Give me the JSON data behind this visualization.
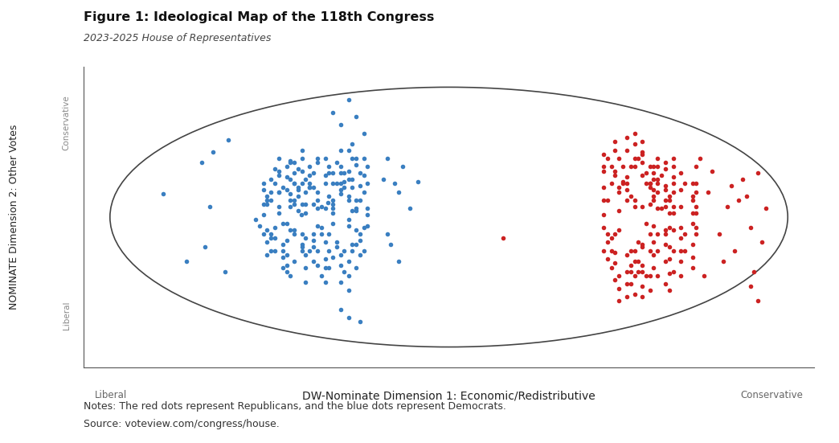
{
  "title": "Figure 1: Ideological Map of the 118th Congress",
  "subtitle": "2023-2025 House of Representatives",
  "xlabel_center": "DW-Nominate Dimension 1: Economic/Redistributive",
  "xlabel_left": "Liberal",
  "xlabel_right": "Conservative",
  "ylabel_top": "Conservative",
  "ylabel_bottom": "Liberal",
  "notes_line1": "Notes: The red dots represent Republicans, and the blue dots represent Democrats.",
  "notes_line2": "Source: voteview.com/congress/house.",
  "dem_color": "#3a7fc1",
  "rep_color": "#cc2222",
  "dot_size": 16,
  "background_color": "#ffffff",
  "ellipse_color": "#444444",
  "dem_points": [
    [
      -0.349,
      0.078
    ],
    [
      -0.424,
      0.012
    ],
    [
      -0.401,
      0.156
    ],
    [
      -0.378,
      -0.045
    ],
    [
      -0.312,
      0.123
    ],
    [
      -0.456,
      0.089
    ],
    [
      -0.289,
      -0.012
    ],
    [
      -0.467,
      -0.034
    ],
    [
      -0.523,
      0.067
    ],
    [
      -0.334,
      0.234
    ],
    [
      -0.445,
      0.178
    ],
    [
      -0.267,
      0.089
    ],
    [
      -0.389,
      -0.123
    ],
    [
      -0.512,
      -0.089
    ],
    [
      -0.278,
      0.201
    ],
    [
      -0.356,
      0.312
    ],
    [
      -0.434,
      0.256
    ],
    [
      -0.301,
      -0.178
    ],
    [
      -0.423,
      -0.156
    ],
    [
      -0.489,
      0.134
    ],
    [
      -0.267,
      0.034
    ],
    [
      -0.378,
      0.089
    ],
    [
      -0.445,
      -0.067
    ],
    [
      -0.312,
      0.178
    ],
    [
      -0.534,
      0.012
    ],
    [
      -0.256,
      -0.089
    ],
    [
      -0.401,
      0.267
    ],
    [
      -0.467,
      -0.201
    ],
    [
      -0.323,
      -0.134
    ],
    [
      -0.489,
      0.223
    ],
    [
      -0.356,
      -0.267
    ],
    [
      -0.278,
      0.156
    ],
    [
      -0.545,
      -0.045
    ],
    [
      -0.234,
      0.012
    ],
    [
      -0.412,
      0.134
    ],
    [
      -0.367,
      -0.312
    ],
    [
      -0.289,
      0.245
    ],
    [
      -0.478,
      -0.178
    ],
    [
      -0.334,
      0.067
    ],
    [
      -0.456,
      0.301
    ],
    [
      -0.245,
      -0.056
    ],
    [
      -0.523,
      0.089
    ],
    [
      -0.301,
      0.189
    ],
    [
      -0.389,
      -0.234
    ],
    [
      -0.434,
      0.145
    ],
    [
      -0.267,
      -0.145
    ],
    [
      -0.512,
      -0.112
    ],
    [
      -0.356,
      0.223
    ],
    [
      -0.423,
      -0.089
    ],
    [
      -0.278,
      0.312
    ],
    [
      -0.489,
      0.056
    ],
    [
      -0.312,
      -0.201
    ],
    [
      -0.445,
      0.234
    ],
    [
      -0.334,
      0.045
    ],
    [
      -0.467,
      -0.256
    ],
    [
      -0.256,
      0.167
    ],
    [
      -0.401,
      -0.178
    ],
    [
      -0.378,
      0.289
    ],
    [
      -0.523,
      -0.067
    ],
    [
      -0.289,
      -0.234
    ],
    [
      -0.456,
      0.123
    ],
    [
      -0.345,
      -0.089
    ],
    [
      -0.412,
      0.201
    ],
    [
      -0.267,
      0.278
    ],
    [
      -0.534,
      0.145
    ],
    [
      -0.323,
      -0.156
    ],
    [
      -0.478,
      -0.034
    ],
    [
      -0.389,
      0.156
    ],
    [
      -0.234,
      0.045
    ],
    [
      -0.501,
      0.178
    ],
    [
      -0.356,
      -0.345
    ],
    [
      -0.445,
      0.067
    ],
    [
      -0.312,
      0.234
    ],
    [
      -0.467,
      -0.123
    ],
    [
      -0.278,
      -0.178
    ],
    [
      -0.423,
      0.312
    ],
    [
      -0.289,
      0.089
    ],
    [
      -0.556,
      -0.012
    ],
    [
      -0.334,
      0.178
    ],
    [
      -0.412,
      -0.267
    ],
    [
      -0.245,
      0.134
    ],
    [
      -0.489,
      0.245
    ],
    [
      -0.367,
      -0.056
    ],
    [
      -0.434,
      0.034
    ],
    [
      -0.301,
      -0.289
    ],
    [
      -0.478,
      0.156
    ],
    [
      -0.345,
      0.267
    ],
    [
      -0.256,
      -0.123
    ],
    [
      -0.512,
      -0.178
    ],
    [
      -0.378,
      0.045
    ],
    [
      -0.423,
      -0.145
    ],
    [
      -0.289,
      0.356
    ],
    [
      -0.456,
      0.289
    ],
    [
      -0.334,
      -0.212
    ],
    [
      -0.401,
      0.178
    ],
    [
      -0.267,
      -0.067
    ],
    [
      -0.523,
      0.112
    ],
    [
      -0.312,
      0.145
    ],
    [
      -0.467,
      -0.289
    ],
    [
      -0.389,
      0.234
    ],
    [
      -0.245,
      0.223
    ],
    [
      -0.534,
      -0.089
    ],
    [
      -0.356,
      -0.134
    ],
    [
      -0.445,
      0.178
    ],
    [
      -0.278,
      0.034
    ],
    [
      -0.501,
      -0.056
    ],
    [
      -0.323,
      0.289
    ],
    [
      -0.412,
      -0.201
    ],
    [
      -0.234,
      0.178
    ],
    [
      -0.489,
      0.134
    ],
    [
      -0.367,
      0.056
    ],
    [
      -0.456,
      -0.312
    ],
    [
      -0.289,
      -0.045
    ],
    [
      -0.423,
      0.245
    ],
    [
      -0.345,
      0.112
    ],
    [
      -0.478,
      -0.145
    ],
    [
      -0.312,
      -0.256
    ],
    [
      -0.401,
      0.156
    ],
    [
      -0.267,
      0.312
    ],
    [
      -0.534,
      0.067
    ],
    [
      -0.378,
      -0.178
    ],
    [
      -0.445,
      0.089
    ],
    [
      -0.256,
      -0.201
    ],
    [
      -0.512,
      0.201
    ],
    [
      -0.334,
      0.023
    ],
    [
      -0.467,
      0.267
    ],
    [
      -0.289,
      -0.312
    ],
    [
      -0.389,
      -0.089
    ],
    [
      -0.423,
      0.178
    ],
    [
      -0.301,
      0.156
    ],
    [
      -0.456,
      -0.067
    ],
    [
      -0.234,
      0.267
    ],
    [
      -0.523,
      -0.134
    ],
    [
      -0.345,
      0.234
    ],
    [
      -0.412,
      0.067
    ],
    [
      -0.278,
      -0.145
    ],
    [
      -0.489,
      0.312
    ],
    [
      -0.356,
      -0.223
    ],
    [
      -0.434,
      0.112
    ],
    [
      -0.267,
      0.045
    ],
    [
      -0.501,
      -0.178
    ],
    [
      -0.323,
      0.178
    ],
    [
      -0.445,
      -0.234
    ],
    [
      -0.312,
      0.267
    ],
    [
      -0.378,
      0.134
    ],
    [
      -0.456,
      0.056
    ],
    [
      -0.245,
      -0.178
    ],
    [
      -0.512,
      0.089
    ],
    [
      -0.367,
      -0.089
    ],
    [
      -0.423,
      0.356
    ],
    [
      -0.289,
      0.112
    ],
    [
      -0.478,
      -0.212
    ],
    [
      -0.334,
      -0.034
    ],
    [
      -0.401,
      0.223
    ],
    [
      -0.256,
      0.234
    ],
    [
      -0.534,
      0.178
    ],
    [
      -0.345,
      -0.267
    ],
    [
      -0.412,
      -0.112
    ],
    [
      -0.278,
      0.389
    ],
    [
      -0.489,
      0.023
    ],
    [
      -0.312,
      -0.345
    ],
    [
      -0.467,
      0.145
    ],
    [
      -0.389,
      0.067
    ],
    [
      -0.423,
      -0.178
    ],
    [
      -0.234,
      -0.045
    ],
    [
      -0.501,
      0.256
    ],
    [
      -0.356,
      0.178
    ],
    [
      -0.445,
      -0.089
    ],
    [
      -0.289,
      0.201
    ],
    [
      -0.523,
      -0.201
    ],
    [
      -0.378,
      0.312
    ],
    [
      -0.412,
      0.023
    ],
    [
      -0.267,
      -0.267
    ],
    [
      -0.456,
      0.201
    ],
    [
      -0.334,
      0.089
    ],
    [
      -0.478,
      -0.267
    ],
    [
      -0.301,
      0.234
    ],
    [
      -0.389,
      -0.156
    ],
    [
      -0.445,
      0.289
    ],
    [
      -0.256,
      0.089
    ],
    [
      -0.512,
      0.134
    ],
    [
      -0.345,
      -0.178
    ],
    [
      -0.423,
      0.067
    ],
    [
      -0.289,
      -0.389
    ],
    [
      -0.467,
      0.212
    ],
    [
      -0.312,
      0.356
    ],
    [
      -0.378,
      -0.256
    ],
    [
      -0.434,
      0.156
    ],
    [
      -0.245,
      0.312
    ],
    [
      -0.501,
      -0.112
    ],
    [
      -0.356,
      0.045
    ],
    [
      -0.412,
      -0.345
    ],
    [
      -0.823,
      0.123
    ],
    [
      -0.756,
      -0.234
    ],
    [
      -0.712,
      0.289
    ],
    [
      -0.689,
      0.056
    ],
    [
      -0.634,
      0.412
    ],
    [
      -0.701,
      -0.156
    ],
    [
      -0.678,
      0.345
    ],
    [
      -0.645,
      -0.289
    ],
    [
      -0.267,
      0.534
    ],
    [
      -0.312,
      0.489
    ],
    [
      -0.289,
      0.623
    ],
    [
      -0.334,
      0.556
    ],
    [
      -0.245,
      0.445
    ],
    [
      -0.289,
      -0.534
    ],
    [
      -0.312,
      -0.489
    ],
    [
      -0.256,
      -0.556
    ],
    [
      -0.189,
      0.201
    ],
    [
      -0.156,
      0.178
    ],
    [
      -0.178,
      -0.089
    ],
    [
      -0.145,
      0.134
    ],
    [
      -0.167,
      -0.145
    ],
    [
      -0.134,
      0.267
    ],
    [
      -0.112,
      0.045
    ],
    [
      -0.089,
      0.189
    ],
    [
      -0.145,
      -0.234
    ],
    [
      -0.178,
      0.312
    ]
  ],
  "rep_points": [
    [
      0.534,
      0.089
    ],
    [
      0.489,
      0.156
    ],
    [
      0.567,
      -0.034
    ],
    [
      0.512,
      0.212
    ],
    [
      0.601,
      0.045
    ],
    [
      0.478,
      -0.089
    ],
    [
      0.623,
      0.167
    ],
    [
      0.556,
      -0.145
    ],
    [
      0.589,
      0.234
    ],
    [
      0.445,
      0.012
    ],
    [
      0.645,
      -0.067
    ],
    [
      0.578,
      0.178
    ],
    [
      0.512,
      -0.201
    ],
    [
      0.634,
      0.112
    ],
    [
      0.467,
      0.267
    ],
    [
      0.701,
      -0.034
    ],
    [
      0.556,
      -0.256
    ],
    [
      0.489,
      0.134
    ],
    [
      0.623,
      0.089
    ],
    [
      0.578,
      -0.178
    ],
    [
      0.534,
      0.312
    ],
    [
      0.667,
      -0.112
    ],
    [
      0.445,
      0.089
    ],
    [
      0.601,
      0.201
    ],
    [
      0.512,
      -0.289
    ],
    [
      0.645,
      0.056
    ],
    [
      0.478,
      0.223
    ],
    [
      0.712,
      -0.089
    ],
    [
      0.567,
      -0.312
    ],
    [
      0.534,
      0.267
    ],
    [
      0.589,
      -0.045
    ],
    [
      0.623,
      0.145
    ],
    [
      0.456,
      -0.134
    ],
    [
      0.678,
      0.178
    ],
    [
      0.545,
      -0.234
    ],
    [
      0.501,
      0.189
    ],
    [
      0.634,
      -0.156
    ],
    [
      0.556,
      0.345
    ],
    [
      0.489,
      -0.067
    ],
    [
      0.701,
      0.089
    ],
    [
      0.578,
      -0.389
    ],
    [
      0.512,
      0.178
    ],
    [
      0.645,
      0.023
    ],
    [
      0.467,
      -0.178
    ],
    [
      0.623,
      0.256
    ],
    [
      0.534,
      -0.312
    ],
    [
      0.589,
      0.112
    ],
    [
      0.667,
      -0.234
    ],
    [
      0.445,
      0.245
    ],
    [
      0.601,
      -0.089
    ],
    [
      0.556,
      0.289
    ],
    [
      0.478,
      -0.245
    ],
    [
      0.712,
      0.134
    ],
    [
      0.523,
      -0.178
    ],
    [
      0.578,
      0.067
    ],
    [
      0.634,
      -0.301
    ],
    [
      0.489,
      0.312
    ],
    [
      0.645,
      0.178
    ],
    [
      0.512,
      -0.356
    ],
    [
      0.567,
      0.234
    ],
    [
      0.701,
      -0.145
    ],
    [
      0.445,
      0.156
    ],
    [
      0.623,
      -0.067
    ],
    [
      0.556,
      0.401
    ],
    [
      0.478,
      -0.189
    ],
    [
      0.589,
      0.145
    ],
    [
      0.634,
      -0.223
    ],
    [
      0.501,
      0.267
    ],
    [
      0.667,
      0.056
    ],
    [
      0.523,
      -0.289
    ],
    [
      0.601,
      0.178
    ],
    [
      0.545,
      -0.134
    ],
    [
      0.456,
      0.312
    ],
    [
      0.678,
      -0.178
    ],
    [
      0.534,
      0.056
    ],
    [
      0.589,
      -0.267
    ],
    [
      0.612,
      0.223
    ],
    [
      0.467,
      -0.112
    ],
    [
      0.645,
      0.267
    ],
    [
      0.512,
      -0.423
    ],
    [
      0.701,
      0.023
    ],
    [
      0.556,
      0.334
    ],
    [
      0.489,
      -0.312
    ],
    [
      0.623,
      -0.089
    ],
    [
      0.578,
      0.178
    ],
    [
      0.445,
      -0.056
    ],
    [
      0.667,
      0.145
    ],
    [
      0.534,
      -0.234
    ],
    [
      0.601,
      0.312
    ],
    [
      0.512,
      0.089
    ],
    [
      0.645,
      -0.289
    ],
    [
      0.478,
      0.245
    ],
    [
      0.712,
      -0.056
    ],
    [
      0.556,
      -0.367
    ],
    [
      0.589,
      0.201
    ],
    [
      0.623,
      -0.145
    ],
    [
      0.467,
      0.178
    ],
    [
      0.634,
      0.089
    ],
    [
      0.523,
      -0.256
    ],
    [
      0.578,
      0.267
    ],
    [
      0.701,
      -0.212
    ],
    [
      0.445,
      0.334
    ],
    [
      0.601,
      -0.178
    ],
    [
      0.556,
      0.056
    ],
    [
      0.489,
      -0.378
    ],
    [
      0.645,
      0.212
    ],
    [
      0.512,
      0.145
    ],
    [
      0.667,
      -0.312
    ],
    [
      0.534,
      0.389
    ],
    [
      0.578,
      -0.089
    ],
    [
      0.623,
      0.056
    ],
    [
      0.456,
      -0.223
    ],
    [
      0.712,
      0.178
    ],
    [
      0.545,
      -0.289
    ],
    [
      0.589,
      0.267
    ],
    [
      0.634,
      -0.056
    ],
    [
      0.478,
      0.401
    ],
    [
      0.701,
      -0.267
    ],
    [
      0.523,
      0.112
    ],
    [
      0.601,
      -0.312
    ],
    [
      0.556,
      0.223
    ],
    [
      0.467,
      -0.267
    ],
    [
      0.645,
      0.134
    ],
    [
      0.512,
      0.356
    ],
    [
      0.678,
      -0.089
    ],
    [
      0.534,
      -0.178
    ],
    [
      0.589,
      0.089
    ],
    [
      0.623,
      -0.356
    ],
    [
      0.445,
      0.267
    ],
    [
      0.667,
      0.234
    ],
    [
      0.556,
      -0.289
    ],
    [
      0.501,
      0.178
    ],
    [
      0.634,
      0.023
    ],
    [
      0.478,
      -0.334
    ],
    [
      0.712,
      0.056
    ],
    [
      0.545,
      0.312
    ],
    [
      0.589,
      -0.201
    ],
    [
      0.623,
      0.289
    ],
    [
      0.456,
      -0.089
    ],
    [
      0.701,
      0.178
    ],
    [
      0.534,
      -0.412
    ],
    [
      0.578,
      0.156
    ],
    [
      0.645,
      -0.178
    ],
    [
      0.512,
      0.423
    ],
    [
      0.489,
      0.034
    ],
    [
      0.667,
      -0.056
    ],
    [
      0.556,
      -0.423
    ],
    [
      0.601,
      0.267
    ],
    [
      0.623,
      -0.234
    ],
    [
      0.445,
      -0.178
    ],
    [
      0.712,
      0.267
    ],
    [
      0.567,
      0.178
    ],
    [
      0.634,
      -0.389
    ],
    [
      0.478,
      0.356
    ],
    [
      0.589,
      -0.134
    ],
    [
      0.701,
      0.112
    ],
    [
      0.523,
      0.267
    ],
    [
      0.556,
      -0.156
    ],
    [
      0.645,
      0.312
    ],
    [
      0.489,
      -0.445
    ],
    [
      0.612,
      0.045
    ],
    [
      0.534,
      0.445
    ],
    [
      0.578,
      -0.312
    ],
    [
      0.456,
      0.089
    ],
    [
      0.667,
      -0.178
    ],
    [
      0.601,
      0.134
    ],
    [
      0.523,
      -0.356
    ],
    [
      0.712,
      0.023
    ],
    [
      0.745,
      0.134
    ],
    [
      0.778,
      -0.089
    ],
    [
      0.801,
      0.056
    ],
    [
      0.823,
      -0.178
    ],
    [
      0.756,
      0.245
    ],
    [
      0.834,
      0.089
    ],
    [
      0.789,
      -0.234
    ],
    [
      0.812,
      0.167
    ],
    [
      0.867,
      -0.056
    ],
    [
      0.845,
      0.201
    ],
    [
      0.878,
      -0.289
    ],
    [
      0.856,
      0.112
    ],
    [
      0.723,
      0.312
    ],
    [
      0.901,
      -0.134
    ],
    [
      0.889,
      0.234
    ],
    [
      0.912,
      0.045
    ],
    [
      0.734,
      -0.312
    ],
    [
      0.867,
      -0.367
    ],
    [
      0.89,
      -0.445
    ],
    [
      0.156,
      -0.112
    ]
  ]
}
